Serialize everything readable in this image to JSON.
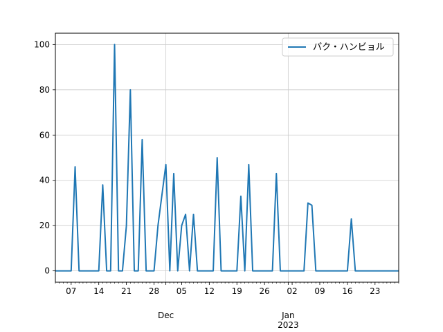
{
  "chart_data": {
    "type": "line",
    "title": "",
    "xlabel": "",
    "ylabel": "",
    "xlim": [
      "2022-11-03",
      "2023-01-29"
    ],
    "ylim": [
      -5,
      105
    ],
    "grid": true,
    "legend_position": "top-right",
    "y_ticks": [
      0,
      20,
      40,
      60,
      80,
      100
    ],
    "x_ticks": [
      {
        "date": "2022-11-07",
        "label": "07"
      },
      {
        "date": "2022-11-14",
        "label": "14"
      },
      {
        "date": "2022-11-21",
        "label": "21"
      },
      {
        "date": "2022-11-28",
        "label": "28"
      },
      {
        "date": "2022-12-05",
        "label": "05"
      },
      {
        "date": "2022-12-12",
        "label": "12"
      },
      {
        "date": "2022-12-19",
        "label": "19"
      },
      {
        "date": "2022-12-26",
        "label": "26"
      },
      {
        "date": "2023-01-02",
        "label": "02"
      },
      {
        "date": "2023-01-09",
        "label": "09"
      },
      {
        "date": "2023-01-16",
        "label": "16"
      },
      {
        "date": "2023-01-23",
        "label": "23"
      }
    ],
    "month_labels": [
      {
        "date": "2022-12-01",
        "label": "Dec"
      },
      {
        "date": "2023-01-01",
        "label": "Jan\n2023"
      }
    ],
    "series": [
      {
        "name": "パク・ハンビョル",
        "color": "#1f77b4",
        "x": [
          "2022-11-03",
          "2022-11-07",
          "2022-11-08",
          "2022-11-09",
          "2022-11-14",
          "2022-11-15",
          "2022-11-16",
          "2022-11-17",
          "2022-11-18",
          "2022-11-19",
          "2022-11-20",
          "2022-11-21",
          "2022-11-22",
          "2022-11-23",
          "2022-11-24",
          "2022-11-25",
          "2022-11-26",
          "2022-11-28",
          "2022-11-29",
          "2022-12-01",
          "2022-12-02",
          "2022-12-03",
          "2022-12-04",
          "2022-12-05",
          "2022-12-06",
          "2022-12-07",
          "2022-12-08",
          "2022-12-09",
          "2022-12-13",
          "2022-12-14",
          "2022-12-15",
          "2022-12-19",
          "2022-12-20",
          "2022-12-21",
          "2022-12-22",
          "2022-12-23",
          "2022-12-28",
          "2022-12-29",
          "2022-12-30",
          "2023-01-05",
          "2023-01-06",
          "2023-01-07",
          "2023-01-08",
          "2023-01-16",
          "2023-01-17",
          "2023-01-18",
          "2023-01-29"
        ],
        "y": [
          0,
          0,
          46,
          0,
          0,
          38,
          0,
          0,
          100,
          0,
          0,
          20,
          80,
          0,
          0,
          58,
          0,
          0,
          20,
          47,
          0,
          43,
          0,
          20,
          25,
          0,
          25,
          0,
          0,
          50,
          0,
          0,
          33,
          0,
          47,
          0,
          0,
          43,
          0,
          0,
          30,
          29,
          0,
          0,
          23,
          0,
          0
        ]
      }
    ]
  }
}
